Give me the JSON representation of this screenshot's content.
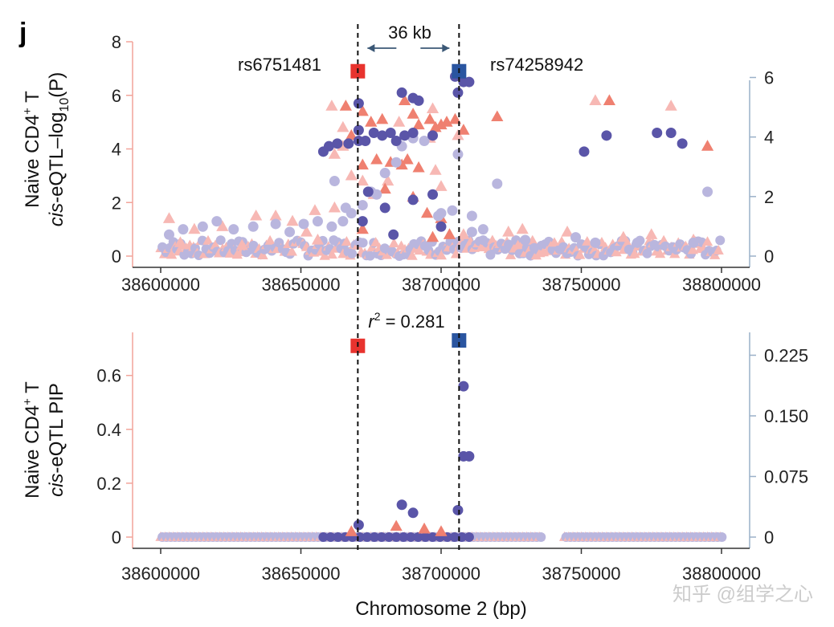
{
  "panel_letter": "j",
  "watermark": "知乎 @组学之心",
  "xlabel": "Chromosome 2 (bp)",
  "colors": {
    "left_axis": "#f2a49a",
    "right_axis": "#9ab0c8",
    "lead_snp_red": "#e8332e",
    "lead_snp_blue": "#2a55a0",
    "tri_dark": "#ef8070",
    "tri_light": "#f7b8b4",
    "dot_dark": "#5a55a8",
    "dot_light": "#b9b6de",
    "kb_arrow": "#3b5876"
  },
  "annotations": {
    "distance": "36 kb",
    "r2_prefix": "r",
    "r2_sup": "2",
    "r2_suffix": " = 0.281",
    "snp_left": "rs6751481",
    "snp_right": "rs74258942"
  },
  "chart_data": [
    {
      "type": "scatter",
      "panel": "top",
      "ylabel_line1_main": "Naive CD4",
      "ylabel_line1_sup": "+",
      "ylabel_line1_end": " T",
      "ylabel_line2_italic": "cis",
      "ylabel_line2_main": "-eQTL–log",
      "ylabel_line2_sub": "10",
      "ylabel_line2_end": "(P)",
      "xlim": [
        38600000,
        38800000
      ],
      "ylim_left": [
        0,
        8
      ],
      "ylim_right": [
        0,
        7.2
      ],
      "x_ticks": [
        "38600000",
        "38650000",
        "38700000",
        "38750000",
        "38800000"
      ],
      "y_ticks_left": [
        "0",
        "2",
        "4",
        "6",
        "8"
      ],
      "y_ticks_right": [
        "0",
        "2",
        "4",
        "6"
      ],
      "lead_snps": [
        {
          "id": "rs6751481",
          "x": 38670300,
          "y": 6.9,
          "color": "red"
        },
        {
          "id": "rs74258942",
          "x": 38706400,
          "y": 6.9,
          "color": "blue"
        }
      ],
      "triangles_dark": [
        [
          38666000,
          5.6
        ],
        [
          38672000,
          5.4
        ],
        [
          38675000,
          5.0
        ],
        [
          38679000,
          5.1
        ],
        [
          38687000,
          5.8
        ],
        [
          38690000,
          5.3
        ],
        [
          38692000,
          4.9
        ],
        [
          38696000,
          5.1
        ],
        [
          38698000,
          4.8
        ],
        [
          38700000,
          4.9
        ],
        [
          38702000,
          5.0
        ],
        [
          38705000,
          5.1
        ],
        [
          38708000,
          4.7
        ],
        [
          38720000,
          5.2
        ],
        [
          38760000,
          5.8
        ],
        [
          38795000,
          4.1
        ],
        [
          38668000,
          4.5
        ],
        [
          38672000,
          3.4
        ],
        [
          38677000,
          3.6
        ],
        [
          38682000,
          3.5
        ],
        [
          38686000,
          3.4
        ],
        [
          38688000,
          3.6
        ],
        [
          38692000,
          3.3
        ],
        [
          38680000,
          2.5
        ],
        [
          38690000,
          2.2
        ],
        [
          38695000,
          1.6
        ],
        [
          38700000,
          1.4
        ],
        [
          38703000,
          0.8
        ],
        [
          38697000,
          0.7
        ],
        [
          38672000,
          1.0
        ]
      ],
      "triangles_light": [
        [
          38603000,
          1.4
        ],
        [
          38612000,
          1.0
        ],
        [
          38622000,
          1.1
        ],
        [
          38634000,
          1.5
        ],
        [
          38641000,
          1.5
        ],
        [
          38647000,
          1.3
        ],
        [
          38655000,
          1.7
        ],
        [
          38662000,
          1.8
        ],
        [
          38661000,
          5.6
        ],
        [
          38665000,
          4.8
        ],
        [
          38662000,
          3.8
        ],
        [
          38665000,
          4.1
        ],
        [
          38668000,
          3.0
        ],
        [
          38672000,
          2.8
        ],
        [
          38676000,
          2.3
        ],
        [
          38681000,
          2.8
        ],
        [
          38685000,
          5.0
        ],
        [
          38696000,
          4.4
        ],
        [
          38698000,
          3.2
        ],
        [
          38700000,
          2.6
        ],
        [
          38706000,
          4.5
        ],
        [
          38724000,
          0.9
        ],
        [
          38745000,
          0.9
        ],
        [
          38755000,
          5.8
        ],
        [
          38765000,
          0.7
        ],
        [
          38775000,
          0.8
        ],
        [
          38782000,
          5.6
        ],
        [
          38790000,
          0.6
        ],
        [
          38697000,
          5.5
        ],
        [
          38656000,
          0.6
        ],
        [
          38607000,
          0.5
        ],
        [
          38629000,
          0.4
        ],
        [
          38708000,
          0.8
        ],
        [
          38729000,
          1.0
        ],
        [
          38652000,
          0.9
        ]
      ],
      "dots_dark": [
        [
          38670600,
          5.7
        ],
        [
          38670600,
          4.7
        ],
        [
          38670600,
          4.3
        ],
        [
          38658000,
          3.9
        ],
        [
          38660000,
          4.1
        ],
        [
          38663000,
          4.2
        ],
        [
          38667000,
          4.2
        ],
        [
          38673000,
          4.3
        ],
        [
          38676000,
          4.6
        ],
        [
          38679000,
          4.5
        ],
        [
          38682000,
          4.6
        ],
        [
          38684000,
          4.3
        ],
        [
          38687000,
          4.5
        ],
        [
          38690000,
          4.6
        ],
        [
          38686000,
          6.1
        ],
        [
          38690000,
          5.9
        ],
        [
          38692000,
          5.8
        ],
        [
          38697000,
          4.5
        ],
        [
          38706000,
          6.1
        ],
        [
          38708000,
          6.5
        ],
        [
          38710000,
          6.5
        ],
        [
          38705000,
          6.7
        ],
        [
          38751000,
          3.9
        ],
        [
          38759000,
          4.5
        ],
        [
          38777000,
          4.6
        ],
        [
          38782000,
          4.6
        ],
        [
          38786000,
          4.2
        ],
        [
          38690000,
          2.1
        ],
        [
          38697000,
          2.3
        ],
        [
          38674000,
          2.4
        ],
        [
          38680000,
          1.8
        ],
        [
          38672000,
          1.3
        ],
        [
          38700000,
          1.1
        ],
        [
          38683000,
          0.8
        ]
      ],
      "dots_light": [
        [
          38603000,
          0.8
        ],
        [
          38608000,
          1.0
        ],
        [
          38615000,
          1.1
        ],
        [
          38620000,
          1.3
        ],
        [
          38626000,
          1.0
        ],
        [
          38633000,
          1.1
        ],
        [
          38641000,
          1.2
        ],
        [
          38646000,
          0.9
        ],
        [
          38651000,
          1.2
        ],
        [
          38656000,
          1.3
        ],
        [
          38661000,
          1.1
        ],
        [
          38665000,
          1.3
        ],
        [
          38668000,
          1.6
        ],
        [
          38672000,
          1.9
        ],
        [
          38675000,
          2.4
        ],
        [
          38680000,
          3.1
        ],
        [
          38684000,
          3.5
        ],
        [
          38686000,
          4.1
        ],
        [
          38690000,
          4.4
        ],
        [
          38694000,
          4.3
        ],
        [
          38700000,
          1.6
        ],
        [
          38704000,
          1.7
        ],
        [
          38706000,
          3.8
        ],
        [
          38711000,
          0.9
        ],
        [
          38715000,
          1.0
        ],
        [
          38720000,
          2.7
        ],
        [
          38730000,
          0.6
        ],
        [
          38748000,
          0.7
        ],
        [
          38755000,
          0.5
        ],
        [
          38770000,
          0.5
        ],
        [
          38790000,
          0.5
        ],
        [
          38795000,
          2.4
        ],
        [
          38662000,
          2.8
        ],
        [
          38677000,
          2.3
        ],
        [
          38666000,
          1.8
        ],
        [
          38699000,
          1.5
        ],
        [
          38711000,
          1.5
        ]
      ]
    },
    {
      "type": "scatter",
      "panel": "bottom",
      "ylabel_line1_main": "Naive CD4",
      "ylabel_line1_sup": "+",
      "ylabel_line1_end": " T",
      "ylabel_line2_italic": "cis",
      "ylabel_line2_main": "-eQTL PIP",
      "xlim": [
        38600000,
        38800000
      ],
      "ylim_left": [
        0,
        0.76
      ],
      "ylim_right": [
        0,
        0.2533
      ],
      "x_ticks": [
        "38600000",
        "38650000",
        "38700000",
        "38750000",
        "38800000"
      ],
      "y_ticks_left": [
        "0",
        "0.2",
        "0.4",
        "0.6"
      ],
      "y_ticks_right": [
        "0",
        "0.075",
        "0.150",
        "0.225"
      ],
      "lead_snps": [
        {
          "id": "rs6751481",
          "x": 38670300,
          "y": 0.71,
          "color": "red"
        },
        {
          "id": "rs74258942",
          "x": 38706400,
          "y": 0.73,
          "color": "blue"
        }
      ],
      "dots_dark": [
        [
          38670600,
          0.045
        ],
        [
          38686000,
          0.12
        ],
        [
          38690000,
          0.09
        ],
        [
          38706000,
          0.1
        ],
        [
          38708000,
          0.56
        ],
        [
          38708000,
          0.3
        ],
        [
          38710000,
          0.3
        ]
      ],
      "triangles_dark": [
        [
          38668000,
          0.02
        ],
        [
          38684000,
          0.04
        ],
        [
          38694000,
          0.03
        ],
        [
          38700000,
          0.02
        ]
      ]
    }
  ]
}
